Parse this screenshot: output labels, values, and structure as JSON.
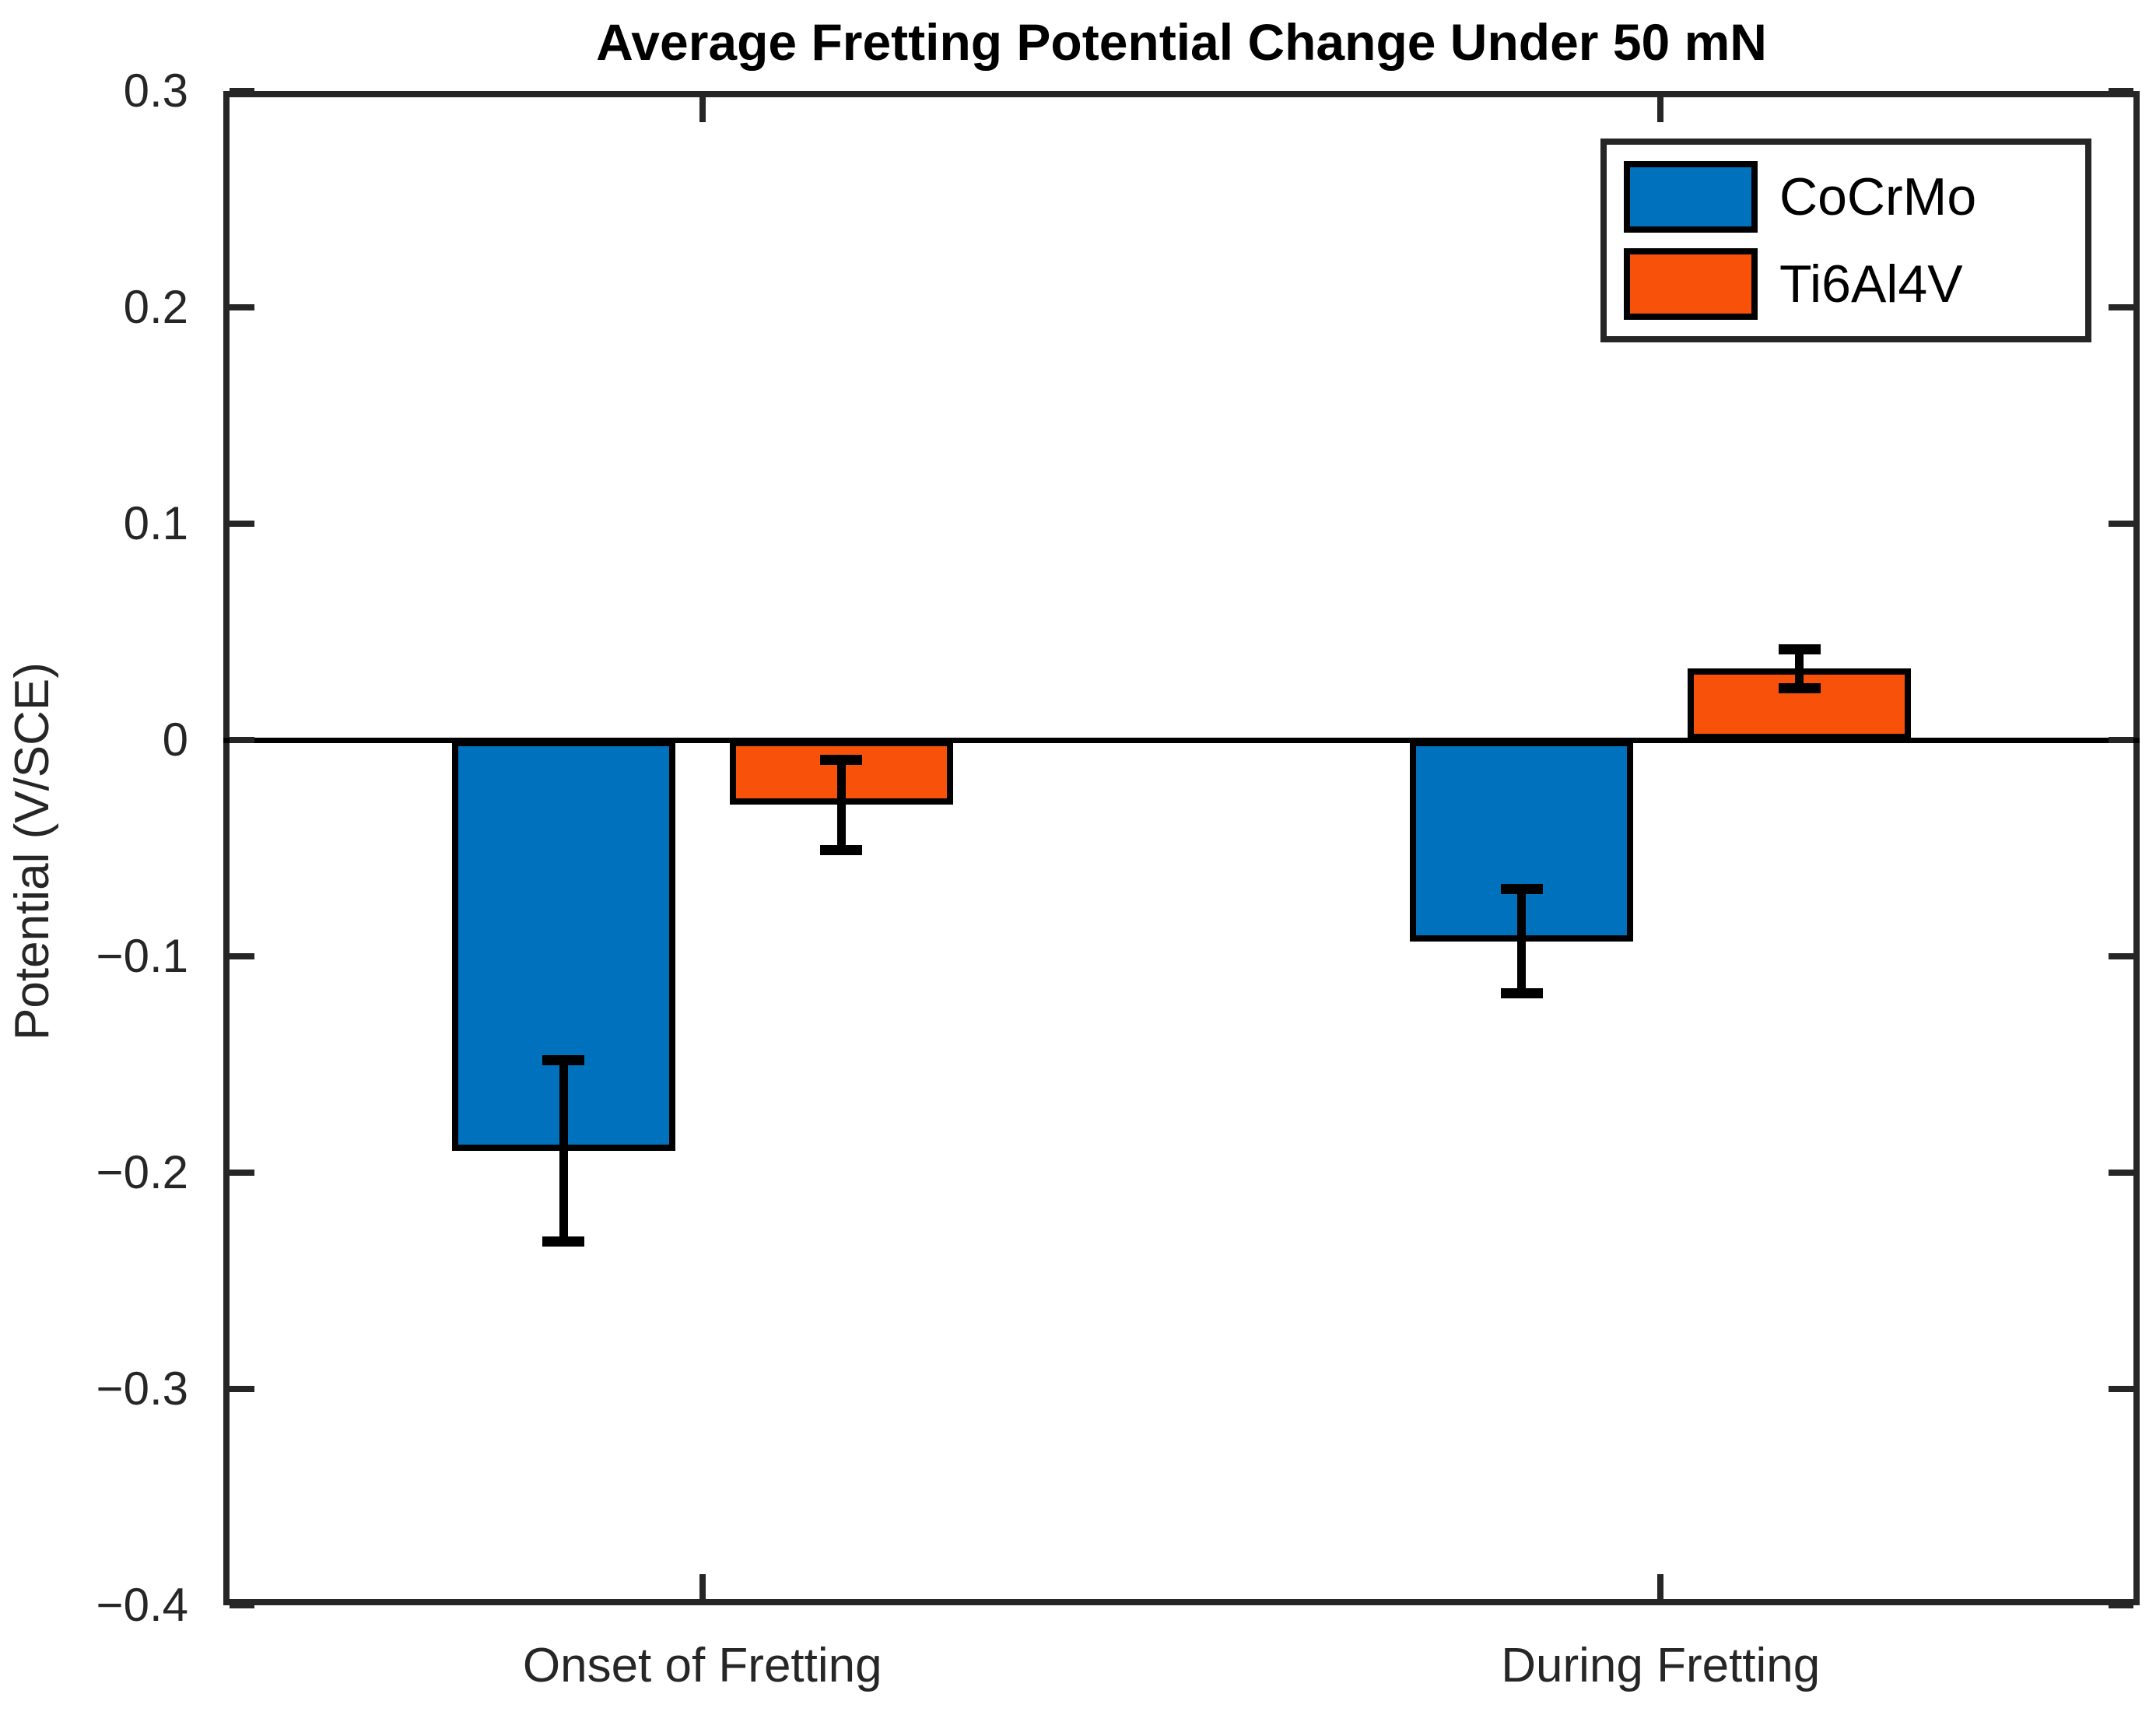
{
  "chart_data": {
    "type": "bar",
    "title": "Average Fretting Potential Change Under 50 mN",
    "ylabel": "Potential (V/SCE)",
    "xlabel": "",
    "categories": [
      "Onset of Fretting",
      "During Fretting"
    ],
    "series": [
      {
        "name": "CoCrMo",
        "color": "#0072BD",
        "values": [
          -0.19,
          -0.093
        ],
        "errors": [
          0.042,
          0.024
        ]
      },
      {
        "name": "Ti6Al4V",
        "color": "#F8520A",
        "values": [
          -0.03,
          0.033
        ],
        "errors": [
          0.021,
          0.009
        ]
      }
    ],
    "ylim": [
      -0.4,
      0.3
    ],
    "yticks": [
      0.3,
      0.2,
      0.1,
      0,
      -0.1,
      -0.2,
      -0.3,
      -0.4
    ],
    "ytick_labels": [
      "0.3",
      "0.2",
      "0.1",
      "0",
      "−0.1",
      "−0.2",
      "−0.3",
      "−0.4"
    ],
    "grid": false,
    "legend_position": "top-right",
    "bar_edge_color": "#000000",
    "error_bar_color": "#000000",
    "axis_color": "#262626",
    "baseline_value": 0
  }
}
